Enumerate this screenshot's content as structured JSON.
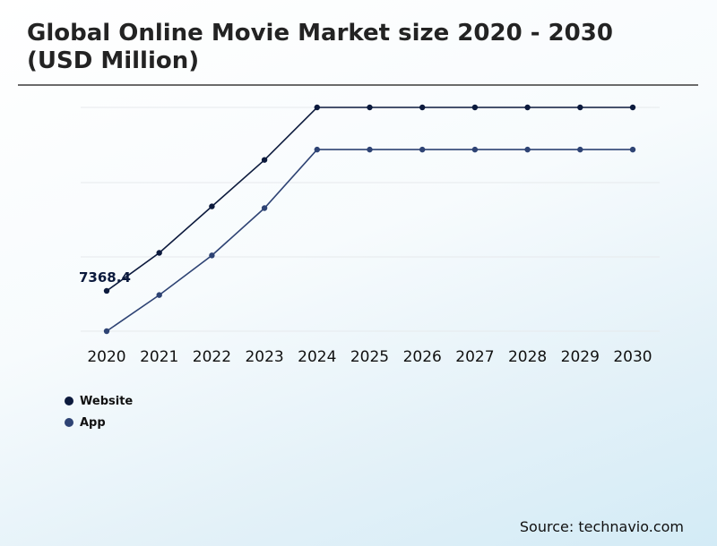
{
  "chart_data": {
    "type": "line",
    "title": "Global Online Movie Market size 2020 - 2030 (USD Million)",
    "categories": [
      "2020",
      "2021",
      "2022",
      "2023",
      "2024",
      "2025",
      "2026",
      "2027",
      "2028",
      "2029",
      "2030"
    ],
    "series": [
      {
        "name": "Website",
        "color": "#0c1a3d",
        "values": [
          7368.4,
          7810,
          8350,
          8890,
          9500,
          9500,
          9500,
          9500,
          9500,
          9500,
          9500
        ]
      },
      {
        "name": "App",
        "color": "#2e4374",
        "values": [
          6900,
          7320,
          7780,
          8330,
          9010,
          9010,
          9010,
          9010,
          9010,
          9010,
          9010
        ]
      }
    ],
    "data_labels": [
      {
        "series": 0,
        "index": 0,
        "text": "7368.4"
      }
    ],
    "ylim": [
      6900,
      9500
    ],
    "grid": true,
    "legend_position": "bottom-left"
  },
  "legend": {
    "items": [
      {
        "label": "Website",
        "color": "#0c1a3d"
      },
      {
        "label": "App",
        "color": "#2e4374"
      }
    ]
  },
  "source": "Source: technavio.com"
}
